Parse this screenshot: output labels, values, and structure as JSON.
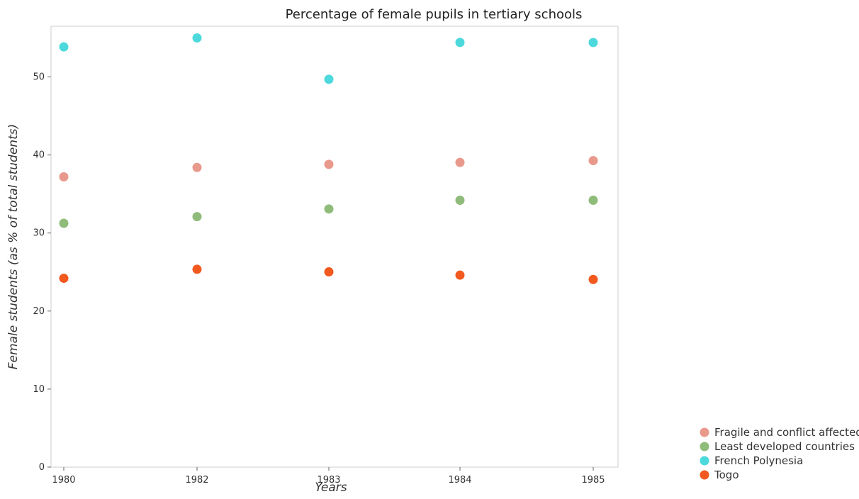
{
  "chart_data": {
    "type": "scatter",
    "title": "Percentage of female pupils in tertiary schools",
    "xlabel": "Years",
    "ylabel": "Female students (as % of total students)",
    "categories": [
      "1980",
      "1982",
      "1983",
      "1984",
      "1985"
    ],
    "ylim": [
      0,
      56.5
    ],
    "yticks": [
      0,
      10,
      20,
      30,
      40,
      50
    ],
    "grid": false,
    "legend_position": "bottom-right",
    "series": [
      {
        "name": "Fragile and conflict affected situations",
        "color": "#e8998c",
        "values": [
          37.2,
          38.4,
          38.8,
          39.05,
          39.28
        ]
      },
      {
        "name": "Least developed countries",
        "color": "#8fbc7a",
        "values": [
          31.25,
          32.1,
          33.08,
          34.2,
          34.2
        ]
      },
      {
        "name": "French Polynesia",
        "color": "#4dd9dc",
        "values": [
          53.85,
          55.0,
          49.7,
          54.42,
          54.41
        ]
      },
      {
        "name": "Togo",
        "color": "#f2591e",
        "values": [
          24.2,
          25.35,
          25.02,
          24.6,
          24.05
        ]
      }
    ]
  }
}
